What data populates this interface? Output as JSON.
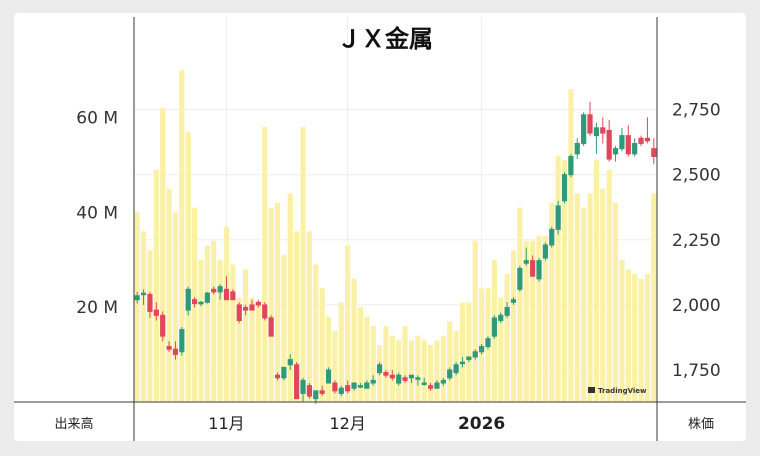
{
  "chart_data": {
    "type": "candlestick",
    "title": "ＪＸ金属",
    "left_axis_label": "出来高",
    "right_axis_label": "株価",
    "volume_ticks": [
      "20 M",
      "40 M",
      "60 M"
    ],
    "volume_tick_values": [
      20,
      40,
      60
    ],
    "volume_unit": "M",
    "volume_range": [
      0,
      80
    ],
    "price_ticks": [
      "1,750",
      "2,000",
      "2,250",
      "2,500",
      "2,750"
    ],
    "price_tick_values": [
      1750,
      2000,
      2250,
      2500,
      2750
    ],
    "price_range": [
      1500,
      2800
    ],
    "x_ticks": [
      {
        "label": "11月",
        "index": 14,
        "bold": false
      },
      {
        "label": "12月",
        "index": 33,
        "bold": false
      },
      {
        "label": "2026",
        "index": 54,
        "bold": true
      }
    ],
    "grid": true,
    "watermark": "TradingView",
    "colors": {
      "up": "#2e9a78",
      "down": "#e2465a",
      "volume": "#fbf1a6"
    },
    "volume": [
      40,
      36,
      32,
      49,
      62,
      45,
      40,
      70,
      57,
      41,
      30,
      33,
      34,
      30,
      37,
      29,
      22,
      28,
      22,
      21,
      58,
      41,
      42,
      31,
      44,
      36,
      58,
      36,
      29,
      24,
      18,
      15,
      21,
      33,
      26,
      20,
      18,
      16,
      12,
      16,
      14,
      13,
      16,
      13,
      14,
      13,
      12,
      13,
      14,
      17,
      15,
      21,
      21,
      34,
      24,
      24,
      30,
      22,
      27,
      32,
      41,
      34,
      34,
      35,
      35,
      42,
      52,
      51,
      66,
      44,
      41,
      44,
      51,
      45,
      49,
      42,
      30,
      28,
      27,
      26,
      27,
      44
    ],
    "ohlc": [
      [
        2020,
        2050,
        2005,
        2035
      ],
      [
        2040,
        2060,
        2000,
        2045
      ],
      [
        2040,
        2050,
        1950,
        1975
      ],
      [
        1980,
        2010,
        1940,
        1960
      ],
      [
        1960,
        1975,
        1860,
        1880
      ],
      [
        1840,
        1860,
        1820,
        1830
      ],
      [
        1830,
        1860,
        1790,
        1810
      ],
      [
        1820,
        1915,
        1805,
        1905
      ],
      [
        1980,
        2070,
        1960,
        2060
      ],
      [
        2020,
        2030,
        1990,
        2005
      ],
      [
        2005,
        2015,
        1995,
        2010
      ],
      [
        2010,
        2050,
        2005,
        2045
      ],
      [
        2060,
        2070,
        2040,
        2050
      ],
      [
        2050,
        2080,
        2020,
        2070
      ],
      [
        2060,
        2110,
        2020,
        2020
      ],
      [
        2050,
        2060,
        2020,
        2020
      ],
      [
        2000,
        2010,
        1930,
        1940
      ],
      [
        1990,
        2000,
        1960,
        1980
      ],
      [
        2000,
        2020,
        1985,
        1980
      ],
      [
        2010,
        2020,
        1990,
        2000
      ],
      [
        2000,
        2010,
        1940,
        1950
      ],
      [
        1950,
        1960,
        1880,
        1880
      ],
      [
        1730,
        1740,
        1710,
        1720
      ],
      [
        1720,
        1760,
        1710,
        1760
      ],
      [
        1770,
        1810,
        1750,
        1790
      ],
      [
        1770,
        1780,
        1640,
        1640
      ],
      [
        1660,
        1720,
        1630,
        1710
      ],
      [
        1690,
        1700,
        1640,
        1650
      ],
      [
        1640,
        1670,
        1620,
        1670
      ],
      [
        1670,
        1690,
        1650,
        1660
      ],
      [
        1700,
        1760,
        1700,
        1750
      ],
      [
        1700,
        1710,
        1660,
        1670
      ],
      [
        1660,
        1690,
        1650,
        1680
      ],
      [
        1690,
        1710,
        1660,
        1670
      ],
      [
        1680,
        1700,
        1670,
        1700
      ],
      [
        1690,
        1700,
        1680,
        1690
      ],
      [
        1680,
        1710,
        1680,
        1700
      ],
      [
        1700,
        1730,
        1690,
        1710
      ],
      [
        1740,
        1780,
        1730,
        1770
      ],
      [
        1740,
        1750,
        1720,
        1730
      ],
      [
        1730,
        1750,
        1710,
        1720
      ],
      [
        1700,
        1740,
        1690,
        1730
      ],
      [
        1720,
        1730,
        1700,
        1710
      ],
      [
        1720,
        1730,
        1700,
        1730
      ],
      [
        1720,
        1730,
        1690,
        1720
      ],
      [
        1700,
        1720,
        1690,
        1700
      ],
      [
        1690,
        1700,
        1670,
        1680
      ],
      [
        1680,
        1710,
        1680,
        1700
      ],
      [
        1700,
        1720,
        1690,
        1710
      ],
      [
        1720,
        1760,
        1710,
        1750
      ],
      [
        1740,
        1780,
        1730,
        1770
      ],
      [
        1780,
        1800,
        1760,
        1780
      ],
      [
        1790,
        1800,
        1780,
        1800
      ],
      [
        1800,
        1830,
        1790,
        1820
      ],
      [
        1820,
        1850,
        1810,
        1840
      ],
      [
        1840,
        1880,
        1830,
        1870
      ],
      [
        1880,
        1960,
        1870,
        1950
      ],
      [
        1940,
        1970,
        1930,
        1960
      ],
      [
        1960,
        2010,
        1950,
        1990
      ],
      [
        2010,
        2030,
        2000,
        2020
      ],
      [
        2060,
        2150,
        2050,
        2140
      ],
      [
        2160,
        2220,
        2150,
        2170
      ],
      [
        2170,
        2190,
        2110,
        2110
      ],
      [
        2100,
        2180,
        2090,
        2170
      ],
      [
        2180,
        2240,
        2170,
        2230
      ],
      [
        2230,
        2300,
        2220,
        2290
      ],
      [
        2290,
        2400,
        2270,
        2380
      ],
      [
        2400,
        2510,
        2390,
        2500
      ],
      [
        2500,
        2580,
        2490,
        2570
      ],
      [
        2580,
        2640,
        2560,
        2620
      ],
      [
        2620,
        2740,
        2610,
        2730
      ],
      [
        2730,
        2780,
        2650,
        2660
      ],
      [
        2650,
        2700,
        2580,
        2680
      ],
      [
        2680,
        2720,
        2620,
        2660
      ],
      [
        2670,
        2710,
        2550,
        2560
      ],
      [
        2580,
        2610,
        2550,
        2600
      ],
      [
        2600,
        2680,
        2590,
        2650
      ],
      [
        2650,
        2690,
        2570,
        2580
      ],
      [
        2580,
        2640,
        2570,
        2620
      ],
      [
        2640,
        2650,
        2610,
        2620
      ],
      [
        2640,
        2720,
        2620,
        2630
      ],
      [
        2600,
        2640,
        2540,
        2570
      ]
    ]
  }
}
